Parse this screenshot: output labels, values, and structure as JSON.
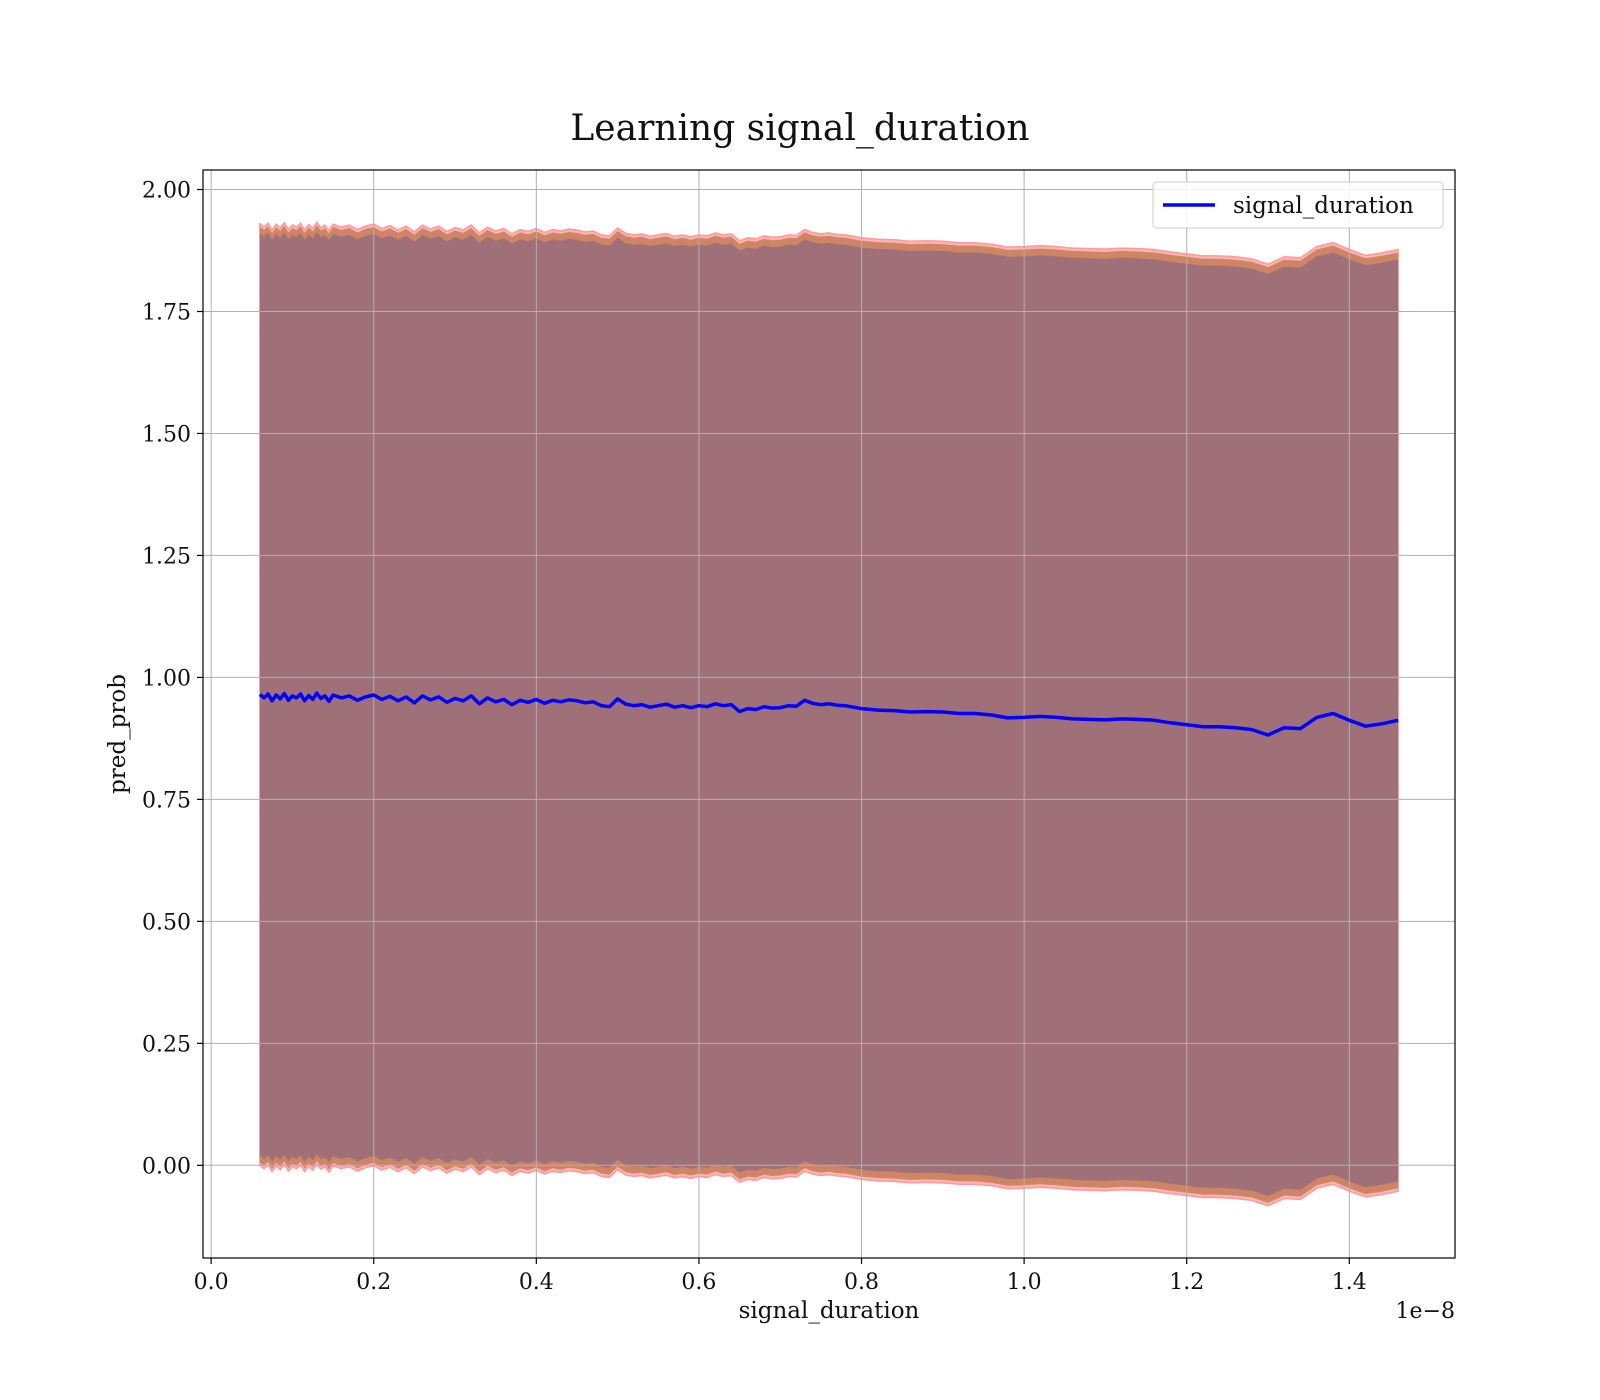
{
  "chart_data": {
    "type": "line",
    "title": "Learning signal_duration",
    "xlabel": "signal_duration",
    "ylabel": "pred_prob",
    "x_offset_label": "1e−8",
    "xlim": [
      -0.01,
      1.53
    ],
    "ylim": [
      -0.19,
      2.04
    ],
    "xticks": [
      0.0,
      0.2,
      0.4,
      0.6,
      0.8,
      1.0,
      1.2,
      1.4
    ],
    "xtick_labels": [
      "0.0",
      "0.2",
      "0.4",
      "0.6",
      "0.8",
      "1.0",
      "1.2",
      "1.4"
    ],
    "yticks": [
      0.0,
      0.25,
      0.5,
      0.75,
      1.0,
      1.25,
      1.5,
      1.75,
      2.0
    ],
    "ytick_labels": [
      "0.00",
      "0.25",
      "0.50",
      "0.75",
      "1.00",
      "1.25",
      "1.50",
      "1.75",
      "2.00"
    ],
    "grid": true,
    "legend": {
      "location": "upper right",
      "entries": [
        "signal_duration"
      ]
    },
    "colors": {
      "line": "#0000ff",
      "band_inner": "#a07078",
      "band_edge": "#c97f5a",
      "band_outline": "#ff9a9a",
      "grid": "#b0b0b0"
    },
    "series": [
      {
        "name": "signal_duration",
        "x": [
          0.06,
          0.065,
          0.07,
          0.075,
          0.08,
          0.085,
          0.09,
          0.095,
          0.1,
          0.105,
          0.11,
          0.115,
          0.12,
          0.125,
          0.13,
          0.135,
          0.14,
          0.145,
          0.15,
          0.16,
          0.17,
          0.18,
          0.19,
          0.2,
          0.21,
          0.22,
          0.23,
          0.24,
          0.25,
          0.26,
          0.27,
          0.28,
          0.29,
          0.3,
          0.31,
          0.32,
          0.33,
          0.34,
          0.35,
          0.36,
          0.37,
          0.38,
          0.39,
          0.4,
          0.41,
          0.42,
          0.43,
          0.44,
          0.45,
          0.46,
          0.47,
          0.48,
          0.49,
          0.5,
          0.51,
          0.52,
          0.53,
          0.54,
          0.55,
          0.56,
          0.57,
          0.58,
          0.59,
          0.6,
          0.61,
          0.62,
          0.63,
          0.64,
          0.65,
          0.66,
          0.67,
          0.68,
          0.69,
          0.7,
          0.71,
          0.72,
          0.73,
          0.74,
          0.75,
          0.76,
          0.77,
          0.78,
          0.79,
          0.8,
          0.82,
          0.84,
          0.86,
          0.88,
          0.9,
          0.92,
          0.94,
          0.96,
          0.98,
          1.0,
          1.02,
          1.04,
          1.06,
          1.08,
          1.1,
          1.12,
          1.14,
          1.16,
          1.18,
          1.2,
          1.22,
          1.24,
          1.26,
          1.28,
          1.3,
          1.32,
          1.34,
          1.36,
          1.38,
          1.4,
          1.42,
          1.44,
          1.46
        ],
        "values": [
          0.965,
          0.958,
          0.966,
          0.952,
          0.964,
          0.956,
          0.967,
          0.953,
          0.962,
          0.958,
          0.966,
          0.952,
          0.963,
          0.955,
          0.968,
          0.957,
          0.962,
          0.951,
          0.964,
          0.958,
          0.962,
          0.953,
          0.96,
          0.964,
          0.955,
          0.961,
          0.952,
          0.96,
          0.948,
          0.962,
          0.954,
          0.96,
          0.949,
          0.957,
          0.952,
          0.962,
          0.946,
          0.958,
          0.95,
          0.955,
          0.944,
          0.953,
          0.949,
          0.955,
          0.947,
          0.953,
          0.95,
          0.954,
          0.952,
          0.948,
          0.95,
          0.942,
          0.94,
          0.956,
          0.945,
          0.942,
          0.944,
          0.939,
          0.942,
          0.945,
          0.939,
          0.942,
          0.938,
          0.942,
          0.94,
          0.946,
          0.942,
          0.944,
          0.93,
          0.936,
          0.934,
          0.94,
          0.937,
          0.938,
          0.942,
          0.941,
          0.953,
          0.947,
          0.944,
          0.946,
          0.943,
          0.942,
          0.939,
          0.936,
          0.933,
          0.932,
          0.929,
          0.93,
          0.929,
          0.926,
          0.926,
          0.923,
          0.917,
          0.918,
          0.92,
          0.918,
          0.915,
          0.914,
          0.913,
          0.915,
          0.914,
          0.912,
          0.907,
          0.903,
          0.899,
          0.899,
          0.897,
          0.893,
          0.882,
          0.897,
          0.895,
          0.918,
          0.926,
          0.912,
          0.9,
          0.905,
          0.912
        ]
      }
    ],
    "band": {
      "half_width_inner": 0.945,
      "half_width_outer": 0.965
    }
  }
}
